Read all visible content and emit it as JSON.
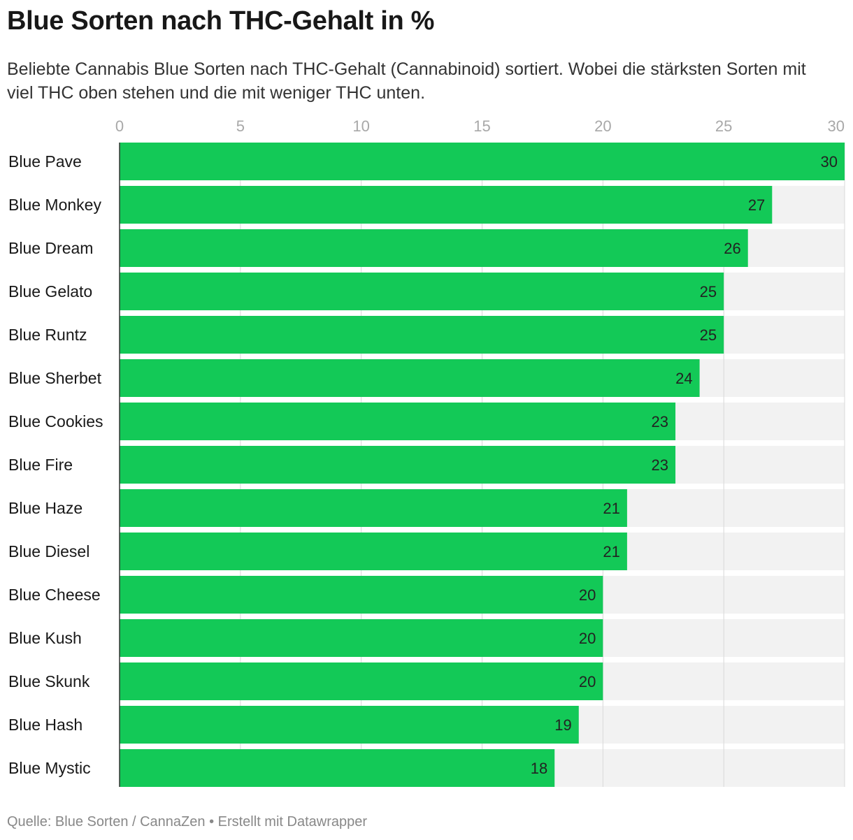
{
  "header": {
    "title": "Blue Sorten nach THC-Gehalt in %",
    "subtitle": "Beliebte Cannabis Blue Sorten nach THC-Gehalt (Cannabinoid) sortiert. Wobei die stärksten Sorten mit viel THC oben stehen und die mit weniger THC unten."
  },
  "footer": {
    "text": "Quelle: Blue Sorten / CannaZen • Erstellt mit Datawrapper"
  },
  "colors": {
    "bar": "#13c957",
    "track": "#f2f2f2",
    "gridline": "#d8d8d8",
    "axis": "#333333"
  },
  "chart_data": {
    "type": "bar",
    "orientation": "horizontal",
    "title": "Blue Sorten nach THC-Gehalt in %",
    "xlabel": "",
    "ylabel": "",
    "xlim": [
      0,
      30
    ],
    "xticks": [
      0,
      5,
      10,
      15,
      20,
      25,
      30
    ],
    "grid": true,
    "categories": [
      "Blue Pave",
      "Blue Monkey",
      "Blue Dream",
      "Blue Gelato",
      "Blue Runtz",
      "Blue Sherbet",
      "Blue Cookies",
      "Blue Fire",
      "Blue Haze",
      "Blue Diesel",
      "Blue Cheese",
      "Blue Kush",
      "Blue Skunk",
      "Blue Hash",
      "Blue Mystic"
    ],
    "values": [
      30,
      27,
      26,
      25,
      25,
      24,
      23,
      23,
      21,
      21,
      20,
      20,
      20,
      19,
      18
    ]
  }
}
